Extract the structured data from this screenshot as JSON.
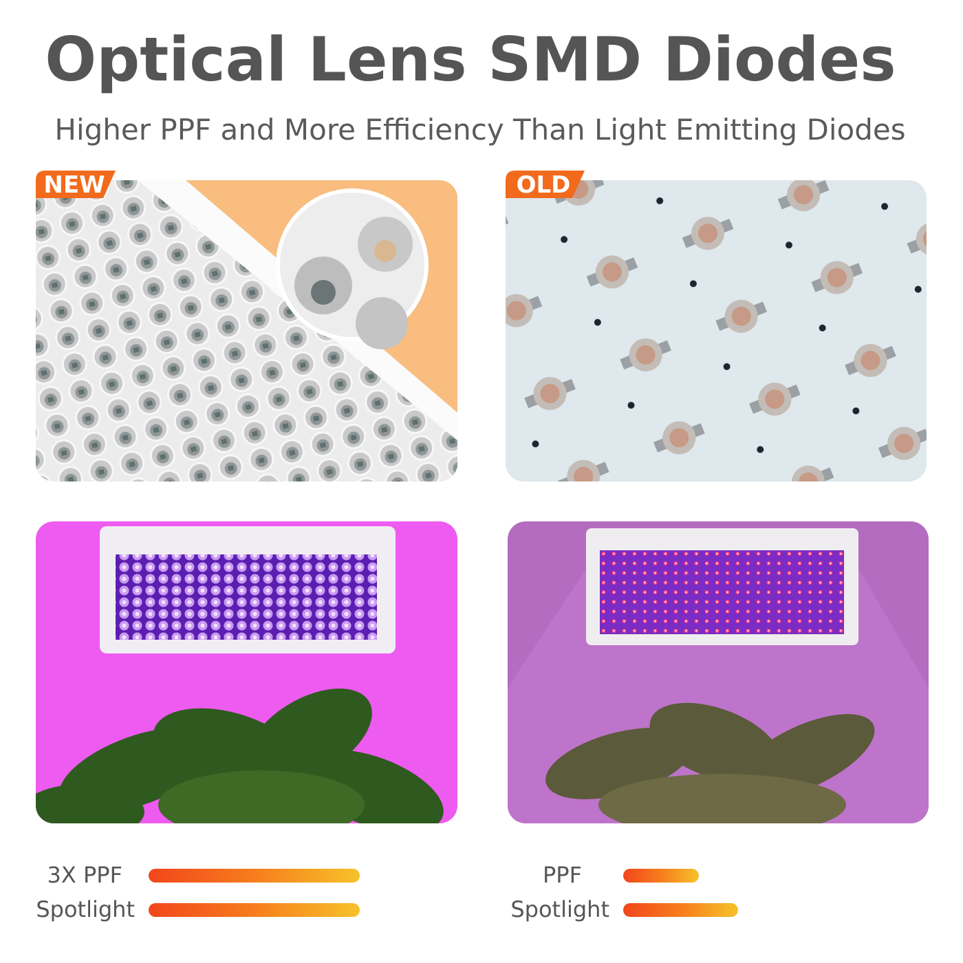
{
  "header": {
    "title": "Optical Lens SMD Diodes",
    "subtitle": "Higher PPF and  More Efficiency Than Light Emitting Diodes"
  },
  "panels": [
    {
      "tag": "NEW",
      "metrics": [
        "3X PPF",
        "Spotlight"
      ]
    },
    {
      "tag": "OLD",
      "metrics": [
        "PPF",
        "Spotlight"
      ]
    }
  ]
}
